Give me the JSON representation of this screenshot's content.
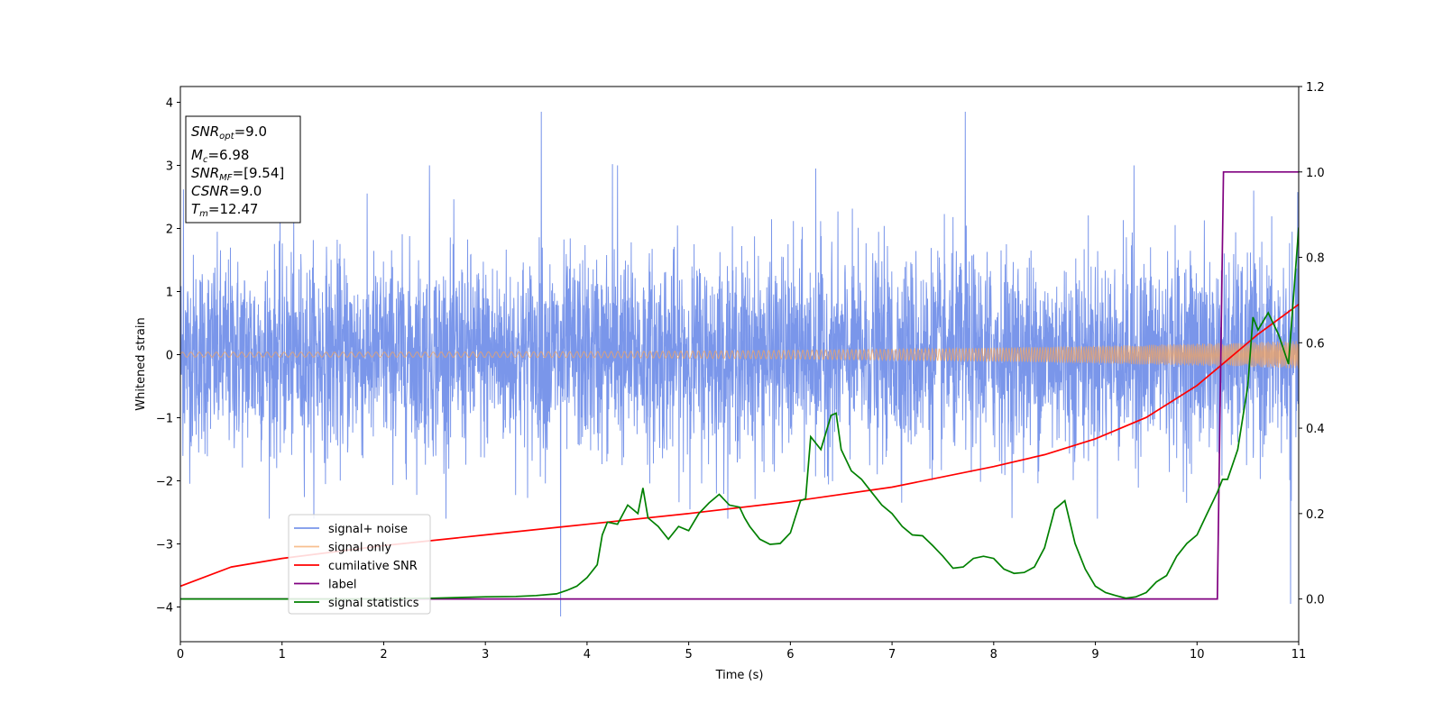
{
  "chart_data": {
    "type": "line",
    "xlabel": "Time (s)",
    "ylabel": "Whitened strain",
    "xlim": [
      0,
      11
    ],
    "ylim": [
      -4.55,
      4.25
    ],
    "y2lim": [
      -0.1,
      1.2
    ],
    "x_ticks": [
      0,
      1,
      2,
      3,
      4,
      5,
      6,
      7,
      8,
      9,
      10,
      11
    ],
    "y_ticks": [
      4,
      3,
      2,
      1,
      0,
      -1,
      -2,
      -3,
      -4
    ],
    "y_tick_labels": [
      "4",
      "3",
      "2",
      "1",
      "0",
      "−1",
      "−2",
      "−3",
      "−4"
    ],
    "y2_ticks": [
      0.0,
      0.2,
      0.4,
      0.6,
      0.8,
      1.0,
      1.2
    ],
    "y2_tick_labels": [
      "0.0",
      "0.2",
      "0.4",
      "0.6",
      "0.8",
      "1.0",
      "1.2"
    ],
    "legend_position": "lower-left",
    "annotation": {
      "lines": [
        {
          "label": "SNR",
          "sub": "opt",
          "value": "=9.0"
        },
        {
          "label": "M",
          "sub": "c",
          "value": "=6.98"
        },
        {
          "label": "SNR",
          "sub": "MF",
          "value": "=[9.54]"
        },
        {
          "label": "CSNR",
          "sub": "",
          "value": "=9.0"
        },
        {
          "label": "T",
          "sub": "m",
          "value": "=12.47"
        }
      ]
    },
    "series": [
      {
        "name": "signal+ noise",
        "color": "#4169e1",
        "axis": "left",
        "kind": "noise",
        "spikes": [
          [
            3.55,
            3.85
          ],
          [
            7.72,
            3.85
          ],
          [
            3.74,
            -4.15
          ],
          [
            10.92,
            -3.95
          ],
          [
            2.45,
            3.0
          ],
          [
            4.25,
            3.02
          ],
          [
            4.3,
            3.0
          ],
          [
            9.38,
            3.0
          ],
          [
            6.25,
            2.95
          ],
          [
            0.03,
            2.62
          ]
        ]
      },
      {
        "name": "signal only",
        "color": "#f4a460",
        "axis": "left",
        "kind": "chirp",
        "amp_start": 0.04,
        "amp_end": 0.22
      },
      {
        "name": "cumilative SNR",
        "color": "#ff0000",
        "axis": "right",
        "x": [
          0,
          0.5,
          1,
          2,
          3,
          4,
          5,
          6,
          7,
          8,
          8.5,
          9,
          9.5,
          10,
          10.3,
          10.6,
          11
        ],
        "y": [
          0.03,
          0.075,
          0.095,
          0.125,
          0.15,
          0.175,
          0.2,
          0.228,
          0.262,
          0.31,
          0.338,
          0.375,
          0.425,
          0.5,
          0.56,
          0.62,
          0.69
        ]
      },
      {
        "name": "label",
        "color": "#800080",
        "axis": "right",
        "x": [
          0,
          10.2,
          10.26,
          11
        ],
        "y": [
          0,
          0,
          1,
          1
        ]
      },
      {
        "name": "signal statistics",
        "color": "#008000",
        "axis": "right",
        "x": [
          0,
          0.5,
          1,
          1.5,
          2,
          2.5,
          3,
          3.3,
          3.5,
          3.7,
          3.8,
          3.9,
          4.0,
          4.1,
          4.15,
          4.2,
          4.3,
          4.4,
          4.5,
          4.55,
          4.6,
          4.7,
          4.8,
          4.9,
          5.0,
          5.1,
          5.2,
          5.3,
          5.4,
          5.5,
          5.55,
          5.6,
          5.7,
          5.8,
          5.9,
          6.0,
          6.1,
          6.15,
          6.2,
          6.3,
          6.4,
          6.45,
          6.5,
          6.6,
          6.7,
          6.8,
          6.9,
          7.0,
          7.1,
          7.2,
          7.3,
          7.4,
          7.5,
          7.6,
          7.7,
          7.8,
          7.9,
          8.0,
          8.1,
          8.2,
          8.3,
          8.4,
          8.5,
          8.6,
          8.7,
          8.8,
          8.9,
          9.0,
          9.1,
          9.2,
          9.3,
          9.4,
          9.5,
          9.6,
          9.7,
          9.8,
          9.9,
          10.0,
          10.1,
          10.2,
          10.25,
          10.3,
          10.4,
          10.5,
          10.55,
          10.6,
          10.7,
          10.8,
          10.9,
          11.0
        ],
        "y": [
          0,
          0,
          0,
          0,
          0,
          0.002,
          0.005,
          0.006,
          0.008,
          0.012,
          0.02,
          0.03,
          0.05,
          0.08,
          0.15,
          0.18,
          0.175,
          0.22,
          0.2,
          0.26,
          0.19,
          0.17,
          0.14,
          0.17,
          0.16,
          0.2,
          0.225,
          0.245,
          0.22,
          0.215,
          0.19,
          0.17,
          0.14,
          0.128,
          0.13,
          0.155,
          0.23,
          0.235,
          0.38,
          0.35,
          0.43,
          0.435,
          0.35,
          0.3,
          0.28,
          0.25,
          0.22,
          0.2,
          0.17,
          0.15,
          0.148,
          0.125,
          0.1,
          0.072,
          0.075,
          0.095,
          0.1,
          0.095,
          0.07,
          0.06,
          0.062,
          0.075,
          0.12,
          0.21,
          0.23,
          0.13,
          0.07,
          0.03,
          0.015,
          0.008,
          0.002,
          0.005,
          0.015,
          0.04,
          0.055,
          0.1,
          0.13,
          0.15,
          0.2,
          0.25,
          0.28,
          0.28,
          0.35,
          0.5,
          0.66,
          0.63,
          0.67,
          0.62,
          0.55,
          0.87
        ]
      }
    ]
  }
}
